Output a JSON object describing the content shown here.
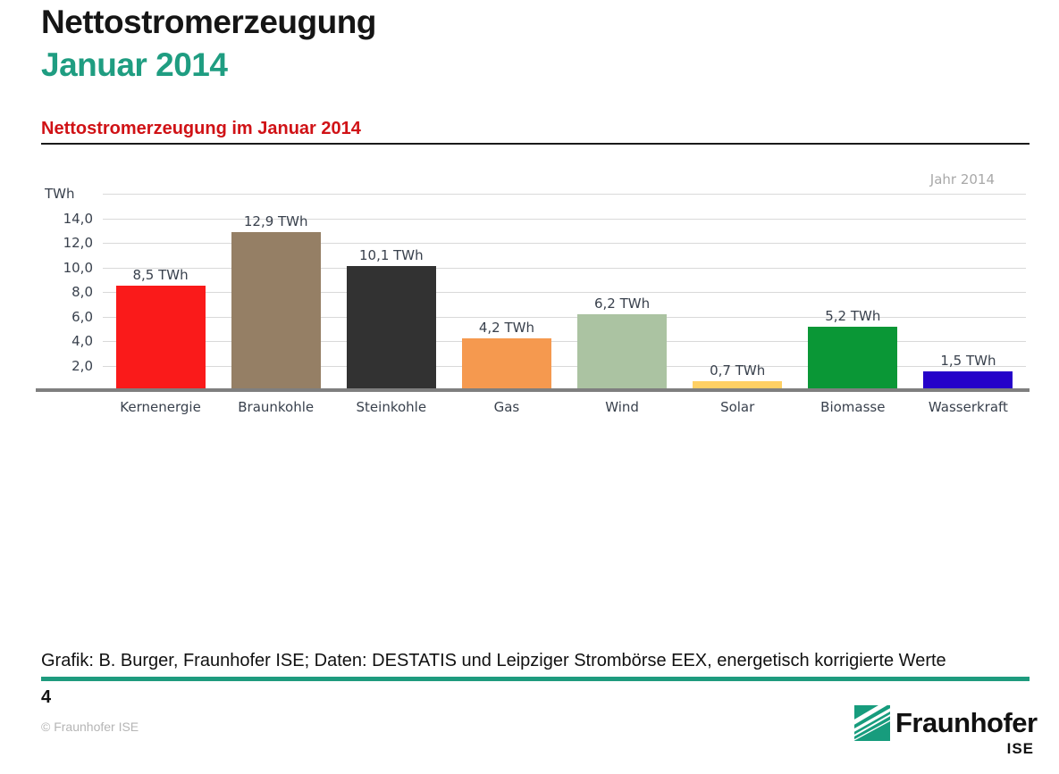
{
  "page": {
    "title": "Nettostromerzeugung",
    "subtitle": "Januar 2014",
    "source_note": "Grafik: B. Burger, Fraunhofer ISE; Daten: DESTATIS und Leipziger Strombörse EEX, energetisch korrigierte Werte",
    "page_number": "4",
    "copyright": "© Fraunhofer ISE",
    "logo_text": "Fraunhofer",
    "logo_sub": "ISE"
  },
  "chart_data": {
    "type": "bar",
    "title": "Nettostromerzeugung im Januar 2014",
    "corner_label": "Jahr 2014",
    "unit_label": "TWh",
    "categories": [
      "Kernenergie",
      "Braunkohle",
      "Steinkohle",
      "Gas",
      "Wind",
      "Solar",
      "Biomasse",
      "Wasserkraft"
    ],
    "values": [
      8.5,
      12.9,
      10.1,
      4.2,
      6.2,
      0.7,
      5.2,
      1.5
    ],
    "value_labels": [
      "8,5 TWh",
      "12,9 TWh",
      "10,1 TWh",
      "4,2 TWh",
      "6,2 TWh",
      "0,7 TWh",
      "5,2 TWh",
      "1,5 TWh"
    ],
    "bar_colors": [
      "#fa1a1a",
      "#957f65",
      "#323232",
      "#f5994f",
      "#abc3a2",
      "#ffd064",
      "#0a9736",
      "#2502c9"
    ],
    "ylim": [
      0,
      16
    ],
    "ytick_step": 2,
    "ytick_labels": [
      "2,0",
      "4,0",
      "6,0",
      "8,0",
      "10,0",
      "12,0",
      "14,0"
    ],
    "grid": true,
    "legend": "none"
  },
  "colors": {
    "accent_teal": "#1f9d81",
    "chart_title_red": "#d01216",
    "axis_text": "#39414d",
    "gridline": "#d9d9d9",
    "baseline": "#7f7f7f",
    "muted_gray": "#a8a8a8",
    "footer_rule_teal": "#1e9b7e"
  }
}
